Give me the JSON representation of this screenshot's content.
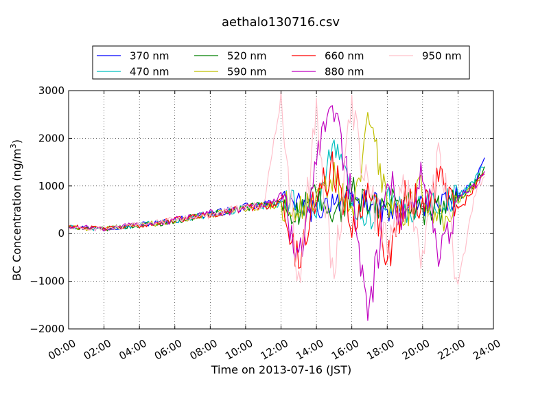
{
  "chart_data": {
    "type": "line",
    "title": "aethalo130716.csv",
    "xlabel": "Time on 2013-07-16 (JST)",
    "ylabel": "BC Concentration (ng/m³)",
    "ylabel_main": "BC Concentration (ng/m",
    "ylabel_sup": "3",
    "ylabel_close": ")",
    "xlim": [
      "00:00",
      "24:00"
    ],
    "ylim": [
      -2000,
      3000
    ],
    "x_ticks": [
      "00:00",
      "02:00",
      "04:00",
      "06:00",
      "08:00",
      "10:00",
      "12:00",
      "14:00",
      "16:00",
      "18:00",
      "20:00",
      "22:00",
      "24:00"
    ],
    "y_ticks": [
      "−2000",
      "−1000",
      "0",
      "1000",
      "2000",
      "3000"
    ],
    "grid": true,
    "legend_position": "top",
    "x": [
      "00:00",
      "01:00",
      "02:00",
      "03:00",
      "04:00",
      "05:00",
      "06:00",
      "07:00",
      "08:00",
      "09:00",
      "10:00",
      "11:00",
      "12:00",
      "13:00",
      "14:00",
      "15:00",
      "16:00",
      "17:00",
      "18:00",
      "19:00",
      "20:00",
      "21:00",
      "22:00",
      "23:00",
      "23:30"
    ],
    "series": [
      {
        "name": "370 nm",
        "color": "#0000ff",
        "values": [
          150,
          120,
          100,
          150,
          200,
          220,
          280,
          350,
          420,
          480,
          560,
          600,
          700,
          600,
          450,
          750,
          650,
          700,
          400,
          500,
          600,
          550,
          750,
          1100,
          1600
        ]
      },
      {
        "name": "470 nm",
        "color": "#00bfbf",
        "values": [
          140,
          110,
          90,
          140,
          180,
          230,
          270,
          340,
          400,
          470,
          540,
          580,
          650,
          700,
          500,
          2000,
          700,
          300,
          800,
          350,
          700,
          600,
          800,
          1150,
          1450
        ]
      },
      {
        "name": "520 nm",
        "color": "#008000",
        "values": [
          130,
          115,
          95,
          145,
          170,
          210,
          265,
          345,
          410,
          460,
          550,
          590,
          640,
          400,
          800,
          300,
          900,
          500,
          600,
          700,
          400,
          500,
          700,
          1100,
          1350
        ]
      },
      {
        "name": "590 nm",
        "color": "#bfbf00",
        "values": [
          145,
          100,
          110,
          160,
          190,
          215,
          260,
          330,
          395,
          475,
          545,
          575,
          620,
          500,
          600,
          1200,
          300,
          2450,
          600,
          400,
          900,
          300,
          650,
          1050,
          1300
        ]
      },
      {
        "name": "660 nm",
        "color": "#ff0000",
        "values": [
          160,
          125,
          105,
          130,
          165,
          225,
          285,
          355,
          405,
          465,
          535,
          585,
          660,
          -650,
          900,
          1350,
          200,
          1150,
          -550,
          800,
          600,
          1200,
          450,
          1000,
          1300
        ]
      },
      {
        "name": "880 nm",
        "color": "#bf00bf",
        "values": [
          120,
          130,
          80,
          170,
          210,
          205,
          290,
          360,
          430,
          455,
          565,
          610,
          760,
          -400,
          1500,
          2500,
          700,
          -1700,
          1100,
          300,
          1400,
          -600,
          800,
          1000,
          1250
        ]
      },
      {
        "name": "950 nm",
        "color": "#ffc0cb",
        "values": [
          110,
          95,
          120,
          120,
          195,
          240,
          300,
          320,
          380,
          490,
          600,
          560,
          2850,
          -900,
          2600,
          -1000,
          2650,
          800,
          -300,
          1200,
          -500,
          1700,
          -1100,
          900,
          1200
        ]
      }
    ]
  }
}
